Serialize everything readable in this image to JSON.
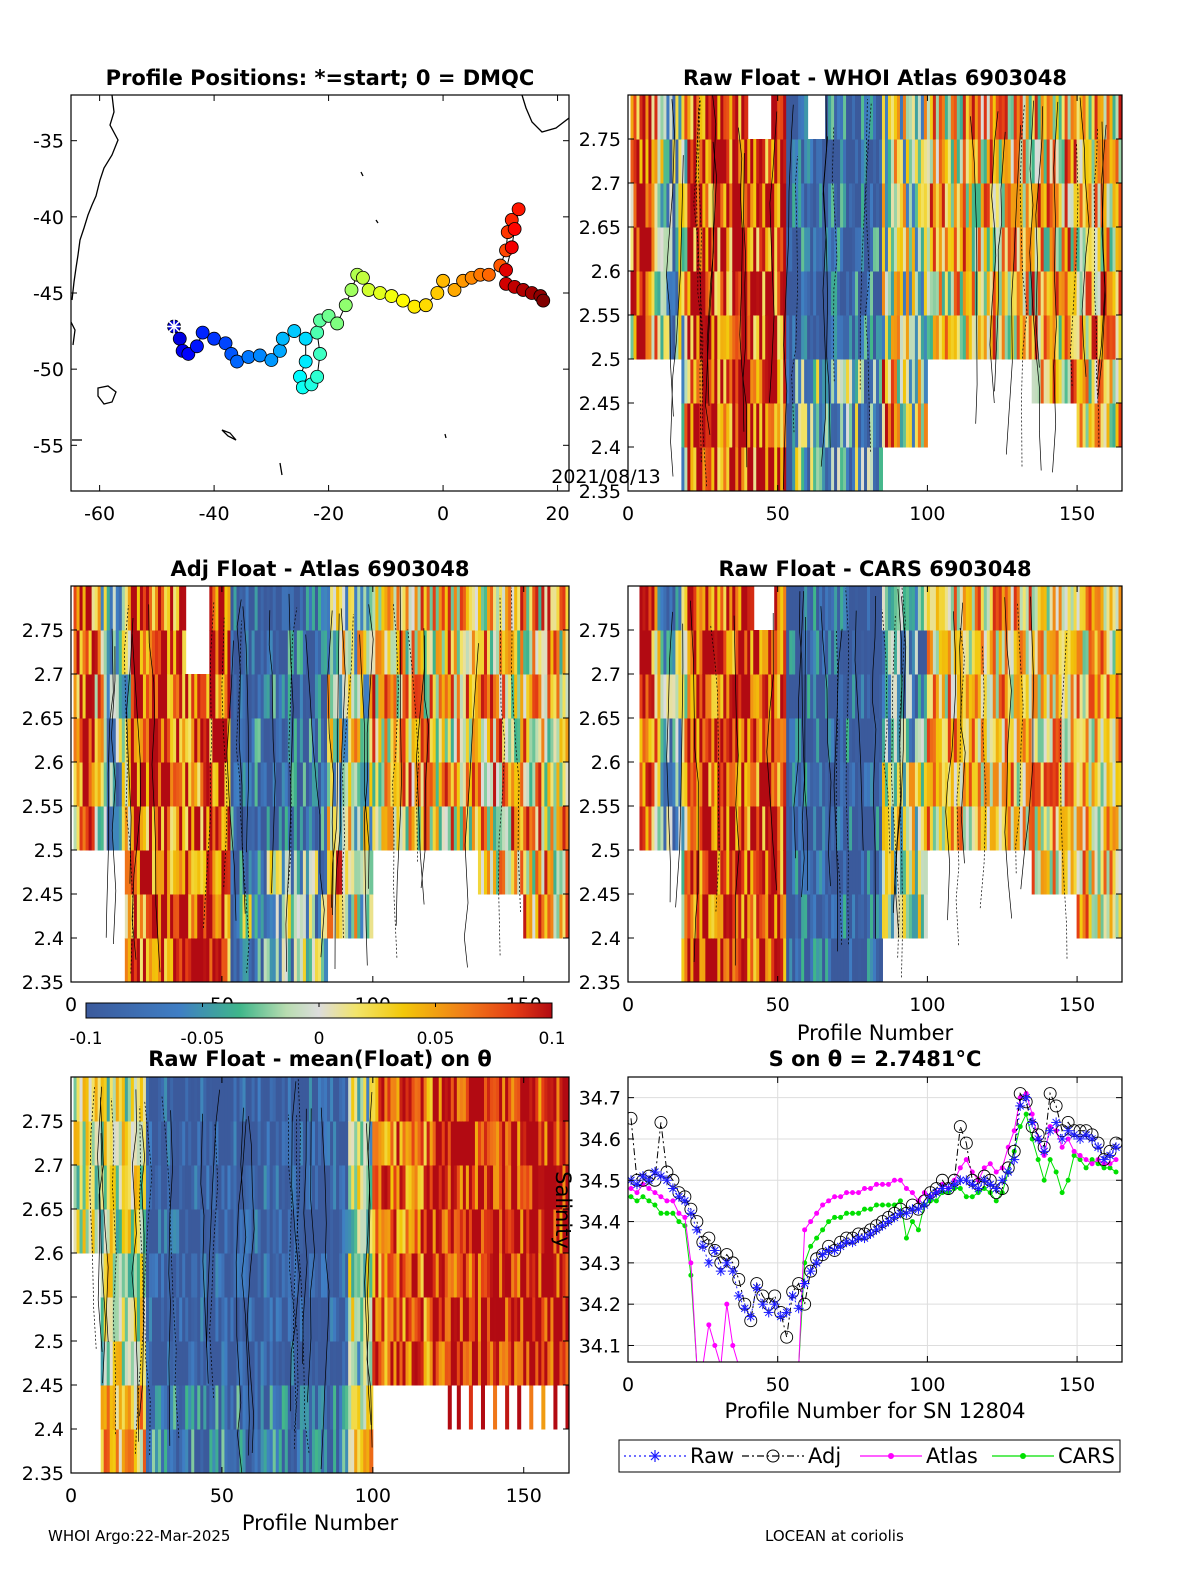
{
  "footer": {
    "left": "WHOI Argo:22-Mar-2025",
    "right": "LOCEAN at coriolis"
  },
  "panels": {
    "map": {
      "title": "Profile Positions: *=start; 0 = DMQC",
      "annotation": "2021/08/13"
    },
    "raw_atlas": {
      "title": "Raw Float - WHOI Atlas  6903048"
    },
    "adj_atlas": {
      "title": "Adj Float - Atlas  6903048"
    },
    "raw_cars": {
      "title": "Raw Float - CARS  6903048",
      "xlabel": "Profile Number"
    },
    "raw_mean": {
      "title": "Raw Float - mean(Float) on θ",
      "xlabel": "Profile Number"
    },
    "salinity": {
      "title": "S on θ = 2.7481°C",
      "xlabel": "Profile Number for SN 12804",
      "ylabel": "Salinity"
    }
  },
  "colorbar": {
    "ticks": [
      "-0.1",
      "-0.05",
      "0",
      "0.05",
      "0.1"
    ],
    "range": [
      -0.1,
      0.1
    ]
  },
  "chart_data": [
    {
      "type": "scatter",
      "id": "map",
      "title": "Profile Positions: *=start; 0 = DMQC",
      "xlim": [
        -65,
        22
      ],
      "ylim": [
        -58,
        -32
      ],
      "xticks": [
        "-60",
        "-40",
        "-20",
        "0",
        "20"
      ],
      "yticks": [
        "-35",
        "-40",
        "-45",
        "-50",
        "-55"
      ],
      "start": [
        -47,
        -47.2
      ],
      "track": [
        [
          -47,
          -47.2
        ],
        [
          -46,
          -48
        ],
        [
          -45.5,
          -48.8
        ],
        [
          -44.5,
          -49
        ],
        [
          -43,
          -48.5
        ],
        [
          -42,
          -47.6
        ],
        [
          -40,
          -48
        ],
        [
          -38,
          -48.3
        ],
        [
          -37,
          -49
        ],
        [
          -36,
          -49.5
        ],
        [
          -34,
          -49.2
        ],
        [
          -32,
          -49.1
        ],
        [
          -30,
          -49.4
        ],
        [
          -28.5,
          -48.8
        ],
        [
          -28,
          -48
        ],
        [
          -26,
          -47.5
        ],
        [
          -24,
          -48
        ],
        [
          -24,
          -49.5
        ],
        [
          -25,
          -50.5
        ],
        [
          -24.5,
          -51.2
        ],
        [
          -23,
          -51
        ],
        [
          -22,
          -50.5
        ],
        [
          -21.5,
          -49
        ],
        [
          -22,
          -47.6
        ],
        [
          -21.5,
          -46.8
        ],
        [
          -20,
          -46.5
        ],
        [
          -18.5,
          -47
        ],
        [
          -17,
          -45.8
        ],
        [
          -16,
          -44.8
        ],
        [
          -15,
          -43.8
        ],
        [
          -14,
          -44
        ],
        [
          -13,
          -44.8
        ],
        [
          -11,
          -45
        ],
        [
          -9,
          -45.2
        ],
        [
          -7,
          -45.5
        ],
        [
          -5,
          -45.9
        ],
        [
          -3,
          -45.8
        ],
        [
          -1,
          -45
        ],
        [
          0,
          -44.2
        ],
        [
          2,
          -44.8
        ],
        [
          3.5,
          -44.2
        ],
        [
          5,
          -44
        ],
        [
          6.5,
          -43.8
        ],
        [
          8,
          -43.8
        ],
        [
          10,
          -43.2
        ],
        [
          11,
          -42.2
        ],
        [
          11.3,
          -41
        ],
        [
          12,
          -40.2
        ],
        [
          13.2,
          -39.5
        ],
        [
          12.5,
          -40.8
        ],
        [
          12,
          -42
        ],
        [
          11,
          -43.5
        ],
        [
          11,
          -44.4
        ],
        [
          12.5,
          -44.6
        ],
        [
          14,
          -44.8
        ],
        [
          15.5,
          -45
        ],
        [
          17,
          -45.2
        ],
        [
          17.5,
          -45.5
        ]
      ]
    },
    {
      "type": "heatmap",
      "id": "raw_atlas",
      "title": "Raw Float - WHOI Atlas  6903048",
      "xlim": [
        0,
        165
      ],
      "ylim": [
        2.35,
        2.8
      ],
      "xticks": [
        "0",
        "50",
        "100",
        "150"
      ],
      "yticks": [
        "2.35",
        "2.4",
        "2.45",
        "2.5",
        "2.55",
        "2.6",
        "2.65",
        "2.7",
        "2.75"
      ],
      "clim": [
        -0.1,
        0.1
      ]
    },
    {
      "type": "heatmap",
      "id": "adj_atlas",
      "title": "Adj Float - Atlas  6903048",
      "xlim": [
        0,
        165
      ],
      "ylim": [
        2.35,
        2.8
      ],
      "yticks": [
        "2.35",
        "2.4",
        "2.45",
        "2.5",
        "2.55",
        "2.6",
        "2.65",
        "2.7",
        "2.75"
      ],
      "clim": [
        -0.1,
        0.1
      ]
    },
    {
      "type": "heatmap",
      "id": "raw_cars",
      "title": "Raw Float - CARS  6903048",
      "xlabel": "Profile Number",
      "xlim": [
        0,
        165
      ],
      "ylim": [
        2.35,
        2.8
      ],
      "xticks": [
        "0",
        "50",
        "100",
        "150"
      ],
      "yticks": [
        "2.35",
        "2.4",
        "2.45",
        "2.5",
        "2.55",
        "2.6",
        "2.65",
        "2.7",
        "2.75"
      ],
      "clim": [
        -0.1,
        0.1
      ]
    },
    {
      "type": "heatmap",
      "id": "raw_mean",
      "title": "Raw Float - mean(Float) on θ",
      "xlabel": "Profile Number",
      "xlim": [
        0,
        165
      ],
      "ylim": [
        2.35,
        2.8
      ],
      "xticks": [
        "0",
        "50",
        "100",
        "150"
      ],
      "yticks": [
        "2.35",
        "2.4",
        "2.45",
        "2.5",
        "2.55",
        "2.6",
        "2.65",
        "2.7",
        "2.75"
      ],
      "clim": [
        -0.1,
        0.1
      ]
    },
    {
      "type": "line",
      "id": "salinity",
      "title": "S on θ = 2.7481°C",
      "xlabel": "Profile Number for SN 12804",
      "ylabel": "Salinity",
      "xlim": [
        0,
        165
      ],
      "ylim": [
        34.06,
        34.75
      ],
      "xticks": [
        "0",
        "50",
        "100",
        "150"
      ],
      "yticks": [
        "34.1",
        "34.2",
        "34.3",
        "34.4",
        "34.5",
        "34.6",
        "34.7"
      ],
      "grid": true,
      "legend_position": "below",
      "x": [
        1,
        3,
        5,
        7,
        9,
        11,
        13,
        15,
        17,
        19,
        21,
        23,
        25,
        27,
        29,
        31,
        33,
        35,
        37,
        39,
        41,
        43,
        45,
        47,
        49,
        51,
        53,
        55,
        57,
        59,
        61,
        63,
        65,
        67,
        69,
        71,
        73,
        75,
        77,
        79,
        81,
        83,
        85,
        87,
        89,
        91,
        93,
        95,
        97,
        99,
        101,
        103,
        105,
        107,
        109,
        111,
        113,
        115,
        117,
        119,
        121,
        123,
        125,
        127,
        129,
        131,
        133,
        135,
        137,
        139,
        141,
        143,
        145,
        147,
        149,
        151,
        153,
        155,
        157,
        159,
        161,
        163
      ],
      "series": [
        {
          "name": "Raw",
          "color": "#1a1aff",
          "values": [
            34.5,
            34.49,
            34.51,
            34.5,
            34.52,
            34.51,
            34.5,
            34.48,
            34.46,
            34.45,
            34.42,
            34.38,
            34.34,
            34.3,
            34.33,
            34.28,
            34.3,
            34.28,
            34.22,
            34.19,
            34.17,
            34.24,
            34.2,
            34.18,
            34.2,
            34.17,
            34.18,
            34.22,
            34.19,
            34.25,
            34.28,
            34.3,
            34.32,
            34.33,
            34.33,
            34.34,
            34.35,
            34.35,
            34.36,
            34.36,
            34.37,
            34.38,
            34.39,
            34.4,
            34.41,
            34.42,
            34.42,
            34.43,
            34.43,
            34.44,
            34.46,
            34.47,
            34.48,
            34.48,
            34.49,
            34.5,
            34.5,
            34.49,
            34.48,
            34.5,
            34.49,
            34.48,
            34.5,
            34.52,
            34.55,
            34.68,
            34.7,
            34.64,
            34.6,
            34.57,
            34.62,
            34.64,
            34.6,
            34.62,
            34.61,
            34.6,
            34.61,
            34.6,
            34.58,
            34.55,
            34.56,
            34.58
          ]
        },
        {
          "name": "Adj",
          "color": "#000000",
          "values": [
            34.65,
            34.5,
            34.5,
            34.51,
            34.5,
            34.64,
            34.52,
            34.5,
            34.47,
            34.46,
            34.43,
            34.4,
            34.35,
            34.36,
            34.33,
            34.3,
            34.32,
            34.3,
            34.26,
            34.2,
            34.16,
            34.25,
            34.22,
            34.2,
            34.22,
            34.18,
            34.12,
            34.23,
            34.25,
            34.2,
            34.28,
            34.31,
            34.32,
            34.34,
            34.33,
            34.35,
            34.36,
            34.36,
            34.37,
            34.37,
            34.38,
            34.39,
            34.4,
            34.41,
            34.42,
            34.43,
            34.42,
            34.44,
            34.43,
            34.45,
            34.47,
            34.48,
            34.5,
            34.48,
            34.5,
            34.63,
            34.59,
            34.5,
            34.49,
            34.51,
            34.5,
            34.47,
            34.48,
            34.53,
            34.57,
            34.71,
            34.69,
            34.63,
            34.61,
            34.58,
            34.71,
            34.68,
            34.62,
            34.64,
            34.62,
            34.62,
            34.62,
            34.61,
            34.59,
            34.55,
            34.57,
            34.59
          ]
        },
        {
          "name": "Atlas",
          "color": "#ff00ff",
          "values": [
            34.48,
            34.47,
            34.49,
            34.48,
            34.47,
            34.46,
            34.45,
            34.45,
            34.42,
            34.41,
            34.3,
            34.05,
            34.05,
            34.15,
            34.1,
            34.05,
            34.2,
            34.1,
            34.05,
            34.05,
            34.05,
            34.05,
            34.05,
            34.05,
            34.05,
            34.05,
            34.05,
            34.05,
            34.05,
            34.38,
            34.4,
            34.42,
            34.44,
            34.45,
            34.46,
            34.46,
            34.47,
            34.47,
            34.47,
            34.48,
            34.48,
            34.49,
            34.49,
            34.49,
            34.5,
            34.5,
            34.48,
            34.47,
            34.45,
            34.47,
            34.46,
            34.47,
            34.49,
            34.48,
            34.5,
            34.53,
            34.55,
            34.52,
            34.5,
            34.53,
            34.54,
            34.52,
            34.53,
            34.58,
            34.62,
            34.7,
            34.71,
            34.66,
            34.6,
            34.56,
            34.63,
            34.62,
            34.58,
            34.6,
            34.57,
            34.56,
            34.55,
            34.54,
            34.55,
            34.54,
            34.54,
            34.55
          ]
        },
        {
          "name": "CARS",
          "color": "#00e000",
          "values": [
            34.46,
            34.45,
            34.46,
            34.45,
            34.44,
            34.42,
            34.42,
            34.42,
            34.4,
            34.39,
            34.27,
            34.05,
            34.05,
            34.05,
            34.05,
            34.05,
            34.05,
            34.05,
            34.05,
            34.05,
            34.05,
            34.05,
            34.05,
            34.05,
            34.05,
            34.05,
            34.05,
            34.05,
            34.05,
            34.3,
            34.34,
            34.36,
            34.38,
            34.4,
            34.41,
            34.41,
            34.42,
            34.42,
            34.42,
            34.43,
            34.43,
            34.44,
            34.44,
            34.44,
            34.44,
            34.45,
            34.36,
            34.4,
            34.38,
            34.44,
            34.45,
            34.45,
            34.47,
            34.47,
            34.48,
            34.48,
            34.46,
            34.46,
            34.47,
            34.48,
            34.47,
            34.45,
            34.47,
            34.52,
            34.57,
            34.63,
            34.66,
            34.6,
            34.55,
            34.5,
            34.55,
            34.52,
            34.47,
            34.5,
            34.56,
            34.55,
            34.53,
            34.55,
            34.54,
            34.53,
            34.53,
            34.52
          ]
        }
      ]
    }
  ]
}
